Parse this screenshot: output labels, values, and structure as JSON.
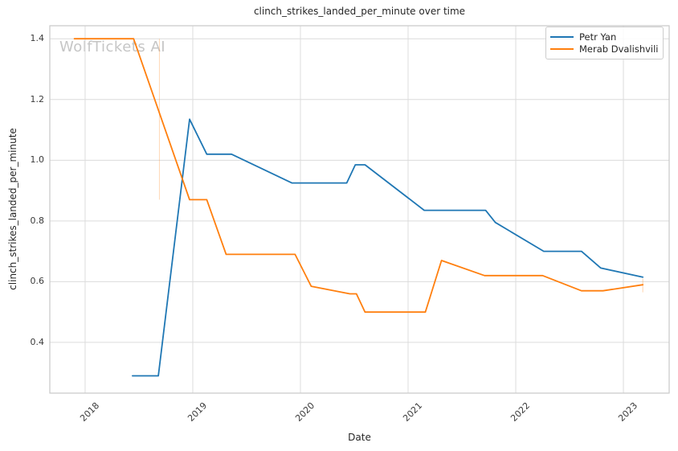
{
  "watermark": "WolfTickets AI",
  "chart_data": {
    "type": "line",
    "title": "clinch_strikes_landed_per_minute over time",
    "xlabel": "Date",
    "ylabel": "clinch_strikes_landed_per_minute",
    "xlim": [
      2017.672,
      2023.425
    ],
    "ylim": [
      0.233,
      1.443
    ],
    "x_ticks": [
      2018,
      2019,
      2020,
      2021,
      2022,
      2023
    ],
    "x_tick_labels": [
      "2018",
      "2019",
      "2020",
      "2021",
      "2022",
      "2023"
    ],
    "y_ticks": [
      0.4,
      0.6,
      0.8,
      1.0,
      1.2,
      1.4
    ],
    "y_tick_labels": [
      "0.4",
      "0.6",
      "0.8",
      "1.0",
      "1.2",
      "1.4"
    ],
    "grid": true,
    "legend_position": "upper right",
    "series": [
      {
        "name": "Petr Yan",
        "color": "#1f77b4",
        "points": [
          [
            2018.44,
            0.29
          ],
          [
            2018.68,
            0.29
          ],
          [
            2018.97,
            1.135
          ],
          [
            2019.13,
            1.02
          ],
          [
            2019.36,
            1.02
          ],
          [
            2019.92,
            0.925
          ],
          [
            2020.43,
            0.925
          ],
          [
            2020.51,
            0.985
          ],
          [
            2020.6,
            0.985
          ],
          [
            2021.15,
            0.835
          ],
          [
            2021.72,
            0.835
          ],
          [
            2021.81,
            0.795
          ],
          [
            2022.26,
            0.7
          ],
          [
            2022.61,
            0.7
          ],
          [
            2022.79,
            0.645
          ],
          [
            2023.18,
            0.615
          ]
        ]
      },
      {
        "name": "Merab Dvalishvili",
        "color": "#ff7f0e",
        "points": [
          [
            2017.9,
            1.4
          ],
          [
            2018.45,
            1.4
          ],
          [
            2018.97,
            0.87
          ],
          [
            2019.13,
            0.87
          ],
          [
            2019.31,
            0.69
          ],
          [
            2019.95,
            0.69
          ],
          [
            2020.1,
            0.585
          ],
          [
            2020.46,
            0.56
          ],
          [
            2020.52,
            0.56
          ],
          [
            2020.6,
            0.5
          ],
          [
            2021.16,
            0.5
          ],
          [
            2021.31,
            0.67
          ],
          [
            2021.71,
            0.62
          ],
          [
            2022.25,
            0.62
          ],
          [
            2022.61,
            0.57
          ],
          [
            2022.81,
            0.57
          ],
          [
            2023.18,
            0.59
          ]
        ]
      }
    ],
    "annotations": [
      {
        "type": "vline",
        "x": 2018.69,
        "y_top": 1.4,
        "y_bottom": 0.87,
        "color": "#ff7f0e",
        "opacity": 0.3
      },
      {
        "type": "vline",
        "x": 2023.18,
        "y_top": 0.61,
        "y_bottom": 0.565,
        "color": "#ff7f0e",
        "opacity": 0.35
      }
    ]
  },
  "legend": {
    "items": [
      {
        "label": "Petr Yan",
        "color": "#1f77b4"
      },
      {
        "label": "Merab Dvalishvili",
        "color": "#ff7f0e"
      }
    ]
  },
  "colors": {
    "grid": "#dcdcdc",
    "spine": "#c9c9c9",
    "text": "#262626",
    "tick_text": "#3a3a3a",
    "watermark": "#c6c6c6",
    "background": "#ffffff"
  }
}
